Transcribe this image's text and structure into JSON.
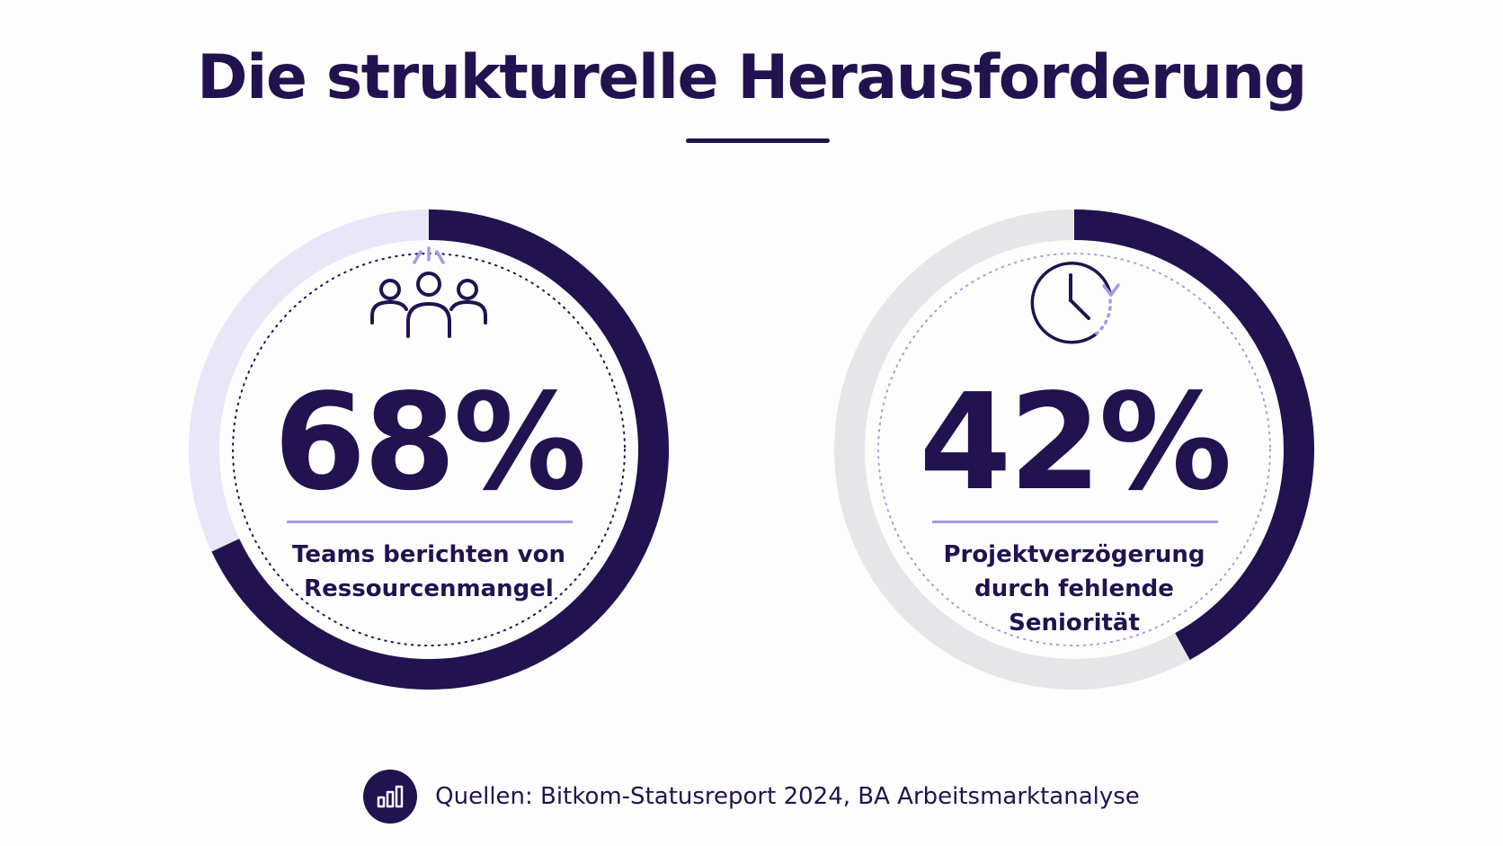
{
  "title": "Die strukturelle Herausforderung",
  "colors": {
    "primary": "#22124f",
    "accent": "#a49be6",
    "track_light_purple": "#e9e6f8",
    "track_gray": "#e6e6e8"
  },
  "chart_data": [
    {
      "type": "gauge",
      "value": 68,
      "display": "68%",
      "max": 100,
      "label": "Teams berichten von\nRessourcenmangel",
      "icon": "people-group-icon",
      "track_color": "#e9e6f8",
      "fill_color": "#22124f"
    },
    {
      "type": "gauge",
      "value": 42,
      "display": "42%",
      "max": 100,
      "label": "Projektverzögerung\ndurch fehlende\nSeniorität",
      "icon": "clock-icon",
      "track_color": "#e6e6e8",
      "fill_color": "#22124f"
    }
  ],
  "source": {
    "text": "Quellen: Bitkom-Statusreport 2024, BA Arbeitsmarktanalyse",
    "icon": "bar-chart-icon"
  }
}
